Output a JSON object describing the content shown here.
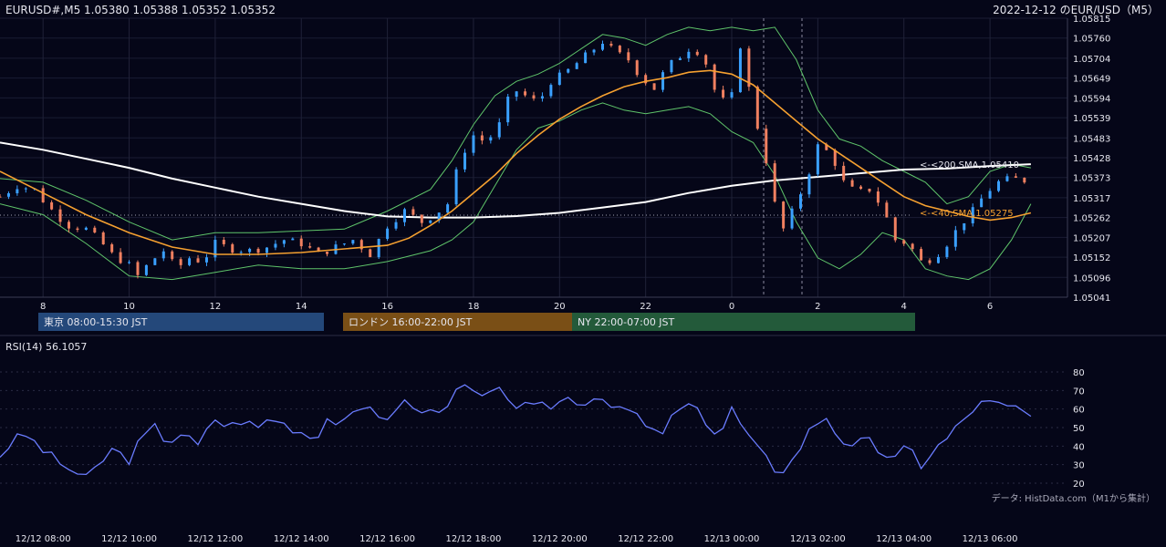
{
  "header": {
    "ohlc_label": "EURUSD#,M5 1.05380 1.05388 1.05352 1.05352",
    "title": "2022-12-12 のEUR/USD（M5）"
  },
  "colors": {
    "background": "#050618",
    "up_candle": "#3aa0ff",
    "down_candle": "#f08060",
    "sma200": "#ffffff",
    "sma40": "#f5a030",
    "bollinger": "#5fc46a",
    "rsi": "#6a7cff",
    "tokyo": "#24487a",
    "london": "#7a4f16",
    "ny": "#235a3a"
  },
  "sessions": [
    {
      "label": "東京 08:00-15:30 JST",
      "start": "8:00",
      "end": "15:30"
    },
    {
      "label": "ロンドン 16:00-22:00 JST",
      "start": "16:00",
      "end": "22:00"
    },
    {
      "label": "NY 22:00-07:00 JST",
      "start": "22:00",
      "end": "07:00"
    }
  ],
  "rsi_panel": {
    "label": "RSI(14) 56.1057"
  },
  "source_note": "データ: HistData.com（M1から集計）",
  "chart_data": [
    {
      "type": "candlestick",
      "symbol": "EURUSD#",
      "timeframe": "M5",
      "y_ticks": [
        "1.05815",
        "1.05760",
        "1.05704",
        "1.05649",
        "1.05594",
        "1.05539",
        "1.05483",
        "1.05428",
        "1.05373",
        "1.05317",
        "1.05262",
        "1.05207",
        "1.05152",
        "1.05096",
        "1.05041"
      ],
      "ylim": [
        1.05041,
        1.05815
      ],
      "x_ticks": [
        "8",
        "10",
        "12",
        "14",
        "16",
        "18",
        "20",
        "22",
        "0",
        "2",
        "4",
        "6"
      ],
      "x_tick_hours": [
        8,
        10,
        12,
        14,
        16,
        18,
        20,
        22,
        24,
        26,
        28,
        30
      ],
      "x_range_hours": [
        7.0,
        31.8
      ],
      "last_candle_hour": 30.95,
      "price_path": [
        [
          7.0,
          1.0532
        ],
        [
          7.4,
          1.0535
        ],
        [
          7.8,
          1.0534
        ],
        [
          8.0,
          1.0531
        ],
        [
          8.3,
          1.0527
        ],
        [
          8.6,
          1.0524
        ],
        [
          9.0,
          1.0523
        ],
        [
          9.3,
          1.052
        ],
        [
          9.6,
          1.0516
        ],
        [
          10.0,
          1.0513
        ],
        [
          10.2,
          1.051
        ],
        [
          10.5,
          1.0514
        ],
        [
          10.8,
          1.0517
        ],
        [
          11.1,
          1.0512
        ],
        [
          11.4,
          1.0515
        ],
        [
          11.7,
          1.0514
        ],
        [
          12.0,
          1.0519
        ],
        [
          12.4,
          1.05175
        ],
        [
          12.8,
          1.0517
        ],
        [
          13.2,
          1.0518
        ],
        [
          13.6,
          1.052
        ],
        [
          14.0,
          1.0519
        ],
        [
          14.4,
          1.0516
        ],
        [
          14.8,
          1.0518
        ],
        [
          15.2,
          1.052
        ],
        [
          15.6,
          1.0516
        ],
        [
          16.0,
          1.0524
        ],
        [
          16.4,
          1.0528
        ],
        [
          16.8,
          1.0525
        ],
        [
          17.1,
          1.0527
        ],
        [
          17.4,
          1.053
        ],
        [
          17.7,
          1.0543
        ],
        [
          18.0,
          1.0549
        ],
        [
          18.3,
          1.0547
        ],
        [
          18.6,
          1.0552
        ],
        [
          18.9,
          1.0562
        ],
        [
          19.2,
          1.056
        ],
        [
          19.5,
          1.0558
        ],
        [
          19.8,
          1.0564
        ],
        [
          20.1,
          1.0566
        ],
        [
          20.4,
          1.0569
        ],
        [
          20.7,
          1.0572
        ],
        [
          21.0,
          1.0575
        ],
        [
          21.3,
          1.0572
        ],
        [
          21.6,
          1.057
        ],
        [
          21.9,
          1.0565
        ],
        [
          22.2,
          1.0562
        ],
        [
          22.5,
          1.0568
        ],
        [
          22.8,
          1.0571
        ],
        [
          23.1,
          1.0574
        ],
        [
          23.4,
          1.0569
        ],
        [
          23.7,
          1.0558
        ],
        [
          24.0,
          1.056
        ],
        [
          24.2,
          1.0574
        ],
        [
          24.5,
          1.0556
        ],
        [
          24.8,
          1.0542
        ],
        [
          25.0,
          1.053
        ],
        [
          25.2,
          1.0523
        ],
        [
          25.5,
          1.053
        ],
        [
          25.8,
          1.0539
        ],
        [
          26.0,
          1.0546
        ],
        [
          26.3,
          1.0544
        ],
        [
          26.6,
          1.0536
        ],
        [
          26.9,
          1.0533
        ],
        [
          27.2,
          1.0534
        ],
        [
          27.5,
          1.0529
        ],
        [
          27.8,
          1.052
        ],
        [
          28.1,
          1.0519
        ],
        [
          28.4,
          1.0514
        ],
        [
          28.7,
          1.0515
        ],
        [
          29.0,
          1.0519
        ],
        [
          29.3,
          1.0524
        ],
        [
          29.6,
          1.0528
        ],
        [
          29.9,
          1.0533
        ],
        [
          30.2,
          1.0536
        ],
        [
          30.5,
          1.0537
        ],
        [
          30.8,
          1.05365
        ],
        [
          30.95,
          1.05352
        ]
      ],
      "sma40_path": [
        [
          7.0,
          1.0539
        ],
        [
          8.0,
          1.0533
        ],
        [
          9.0,
          1.0527
        ],
        [
          10.0,
          1.0522
        ],
        [
          11.0,
          1.0518
        ],
        [
          12.0,
          1.0516
        ],
        [
          13.0,
          1.0516
        ],
        [
          14.0,
          1.05165
        ],
        [
          15.0,
          1.05175
        ],
        [
          16.0,
          1.05185
        ],
        [
          16.5,
          1.05205
        ],
        [
          17.0,
          1.0524
        ],
        [
          17.5,
          1.0528
        ],
        [
          18.0,
          1.0533
        ],
        [
          18.5,
          1.0538
        ],
        [
          19.0,
          1.0544
        ],
        [
          19.5,
          1.0549
        ],
        [
          20.0,
          1.05535
        ],
        [
          20.5,
          1.0557
        ],
        [
          21.0,
          1.056
        ],
        [
          21.5,
          1.05625
        ],
        [
          22.0,
          1.0564
        ],
        [
          22.5,
          1.0565
        ],
        [
          23.0,
          1.05665
        ],
        [
          23.5,
          1.0567
        ],
        [
          24.0,
          1.0566
        ],
        [
          24.5,
          1.0563
        ],
        [
          25.0,
          1.0558
        ],
        [
          25.5,
          1.0553
        ],
        [
          26.0,
          1.0548
        ],
        [
          26.5,
          1.0544
        ],
        [
          27.0,
          1.054
        ],
        [
          27.5,
          1.0536
        ],
        [
          28.0,
          1.0532
        ],
        [
          28.5,
          1.05295
        ],
        [
          29.0,
          1.0528
        ],
        [
          29.5,
          1.05265
        ],
        [
          30.0,
          1.05255
        ],
        [
          30.5,
          1.05262
        ],
        [
          30.95,
          1.05275
        ]
      ],
      "sma200_path": [
        [
          7.0,
          1.0547
        ],
        [
          8.0,
          1.0545
        ],
        [
          9.0,
          1.05425
        ],
        [
          10.0,
          1.054
        ],
        [
          11.0,
          1.0537
        ],
        [
          12.0,
          1.05345
        ],
        [
          13.0,
          1.0532
        ],
        [
          14.0,
          1.053
        ],
        [
          15.0,
          1.0528
        ],
        [
          16.0,
          1.05265
        ],
        [
          17.0,
          1.05262
        ],
        [
          18.0,
          1.05262
        ],
        [
          19.0,
          1.05266
        ],
        [
          20.0,
          1.05275
        ],
        [
          21.0,
          1.0529
        ],
        [
          22.0,
          1.05305
        ],
        [
          23.0,
          1.0533
        ],
        [
          24.0,
          1.0535
        ],
        [
          25.0,
          1.05365
        ],
        [
          26.0,
          1.05375
        ],
        [
          27.0,
          1.05385
        ],
        [
          28.0,
          1.05395
        ],
        [
          29.0,
          1.05398
        ],
        [
          30.0,
          1.05405
        ],
        [
          30.95,
          1.0541
        ]
      ],
      "sma200_label": "<-<200,SMA,1.05410",
      "sma40_label": "<-<40,SMA,1.05275",
      "bb_upper_path": [
        [
          7.0,
          1.0537
        ],
        [
          8.0,
          1.0536
        ],
        [
          9.0,
          1.0531
        ],
        [
          10.0,
          1.0525
        ],
        [
          11.0,
          1.052
        ],
        [
          12.0,
          1.0522
        ],
        [
          13.0,
          1.0522
        ],
        [
          14.0,
          1.05225
        ],
        [
          15.0,
          1.0523
        ],
        [
          16.0,
          1.0528
        ],
        [
          17.0,
          1.0534
        ],
        [
          17.5,
          1.0542
        ],
        [
          18.0,
          1.0552
        ],
        [
          18.5,
          1.056
        ],
        [
          19.0,
          1.0564
        ],
        [
          19.5,
          1.0566
        ],
        [
          20.0,
          1.0569
        ],
        [
          20.5,
          1.0573
        ],
        [
          21.0,
          1.0577
        ],
        [
          21.5,
          1.0576
        ],
        [
          22.0,
          1.0574
        ],
        [
          22.5,
          1.0577
        ],
        [
          23.0,
          1.0579
        ],
        [
          23.5,
          1.0578
        ],
        [
          24.0,
          1.0579
        ],
        [
          24.5,
          1.0578
        ],
        [
          25.0,
          1.0579
        ],
        [
          25.5,
          1.057
        ],
        [
          26.0,
          1.0556
        ],
        [
          26.5,
          1.0548
        ],
        [
          27.0,
          1.0546
        ],
        [
          27.5,
          1.0542
        ],
        [
          28.0,
          1.0539
        ],
        [
          28.5,
          1.0536
        ],
        [
          29.0,
          1.053
        ],
        [
          29.5,
          1.0532
        ],
        [
          30.0,
          1.0539
        ],
        [
          30.5,
          1.0541
        ],
        [
          30.95,
          1.054
        ]
      ],
      "bb_lower_path": [
        [
          7.0,
          1.053
        ],
        [
          8.0,
          1.0527
        ],
        [
          9.0,
          1.0519
        ],
        [
          10.0,
          1.051
        ],
        [
          11.0,
          1.0509
        ],
        [
          12.0,
          1.0511
        ],
        [
          13.0,
          1.0513
        ],
        [
          14.0,
          1.0512
        ],
        [
          15.0,
          1.0512
        ],
        [
          16.0,
          1.0514
        ],
        [
          17.0,
          1.0517
        ],
        [
          17.5,
          1.052
        ],
        [
          18.0,
          1.0525
        ],
        [
          18.5,
          1.0535
        ],
        [
          19.0,
          1.0545
        ],
        [
          19.5,
          1.0551
        ],
        [
          20.0,
          1.0553
        ],
        [
          20.5,
          1.0556
        ],
        [
          21.0,
          1.0558
        ],
        [
          21.5,
          1.0556
        ],
        [
          22.0,
          1.0555
        ],
        [
          22.5,
          1.0556
        ],
        [
          23.0,
          1.0557
        ],
        [
          23.5,
          1.0555
        ],
        [
          24.0,
          1.055
        ],
        [
          24.5,
          1.0547
        ],
        [
          25.0,
          1.0538
        ],
        [
          25.5,
          1.0525
        ],
        [
          26.0,
          1.0515
        ],
        [
          26.5,
          1.0512
        ],
        [
          27.0,
          1.0516
        ],
        [
          27.5,
          1.0522
        ],
        [
          28.0,
          1.052
        ],
        [
          28.5,
          1.0512
        ],
        [
          29.0,
          1.051
        ],
        [
          29.5,
          1.0509
        ],
        [
          30.0,
          1.0512
        ],
        [
          30.5,
          1.052
        ],
        [
          30.95,
          1.053
        ]
      ]
    },
    {
      "type": "line",
      "name": "RSI(14)",
      "last_value": 56.1057,
      "y_ticks": [
        80,
        70,
        60,
        50,
        40,
        30,
        20
      ],
      "ylim": [
        20,
        80
      ],
      "x_ticks": [
        "12/12 08:00",
        "12/12 10:00",
        "12/12 12:00",
        "12/12 14:00",
        "12/12 16:00",
        "12/12 18:00",
        "12/12 20:00",
        "12/12 22:00",
        "12/13 00:00",
        "12/13 02:00",
        "12/13 04:00",
        "12/13 06:00"
      ],
      "x_tick_hours": [
        8,
        10,
        12,
        14,
        16,
        18,
        20,
        22,
        24,
        26,
        28,
        30
      ],
      "path": [
        [
          7.0,
          35
        ],
        [
          7.3,
          43
        ],
        [
          7.6,
          46
        ],
        [
          8.0,
          38
        ],
        [
          8.3,
          32
        ],
        [
          8.6,
          28
        ],
        [
          9.0,
          22
        ],
        [
          9.3,
          30
        ],
        [
          9.6,
          38
        ],
        [
          10.0,
          33
        ],
        [
          10.3,
          44
        ],
        [
          10.6,
          50
        ],
        [
          10.9,
          42
        ],
        [
          11.2,
          47
        ],
        [
          11.6,
          40
        ],
        [
          12.0,
          55
        ],
        [
          12.3,
          50
        ],
        [
          12.6,
          54
        ],
        [
          13.0,
          50
        ],
        [
          13.3,
          56
        ],
        [
          13.6,
          52
        ],
        [
          14.0,
          48
        ],
        [
          14.3,
          44
        ],
        [
          14.6,
          55
        ],
        [
          15.0,
          52
        ],
        [
          15.3,
          58
        ],
        [
          15.6,
          63
        ],
        [
          16.0,
          52
        ],
        [
          16.3,
          66
        ],
        [
          16.6,
          60
        ],
        [
          17.0,
          58
        ],
        [
          17.4,
          64
        ],
        [
          17.8,
          72
        ],
        [
          18.0,
          68
        ],
        [
          18.3,
          66
        ],
        [
          18.7,
          70
        ],
        [
          19.0,
          62
        ],
        [
          19.4,
          60
        ],
        [
          19.8,
          62
        ],
        [
          20.2,
          66
        ],
        [
          20.6,
          64
        ],
        [
          21.0,
          68
        ],
        [
          21.3,
          58
        ],
        [
          21.7,
          60
        ],
        [
          22.0,
          50
        ],
        [
          22.3,
          45
        ],
        [
          22.7,
          58
        ],
        [
          23.0,
          62
        ],
        [
          23.4,
          54
        ],
        [
          23.7,
          45
        ],
        [
          24.0,
          60
        ],
        [
          24.3,
          48
        ],
        [
          24.6,
          38
        ],
        [
          25.0,
          28
        ],
        [
          25.3,
          28
        ],
        [
          25.6,
          40
        ],
        [
          25.9,
          52
        ],
        [
          26.2,
          56
        ],
        [
          26.5,
          45
        ],
        [
          26.8,
          38
        ],
        [
          27.1,
          44
        ],
        [
          27.4,
          38
        ],
        [
          27.8,
          33
        ],
        [
          28.1,
          40
        ],
        [
          28.4,
          30
        ],
        [
          28.7,
          38
        ],
        [
          29.0,
          44
        ],
        [
          29.3,
          52
        ],
        [
          29.6,
          60
        ],
        [
          29.9,
          64
        ],
        [
          30.2,
          62
        ],
        [
          30.5,
          60
        ],
        [
          30.8,
          63
        ],
        [
          30.95,
          56.1057
        ]
      ]
    }
  ]
}
